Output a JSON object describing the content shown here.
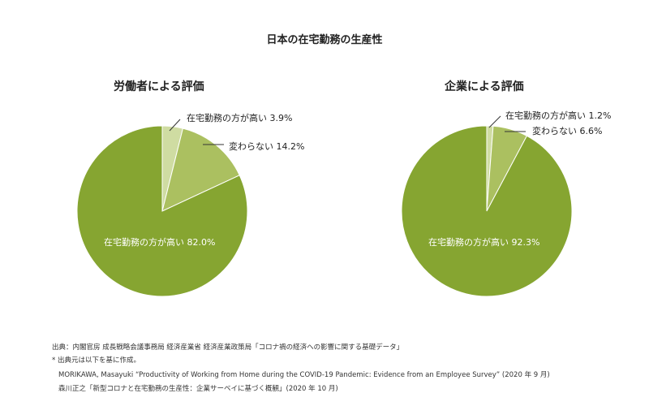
{
  "title": "日本の在宅勤務の生産性",
  "colors": {
    "high_home": "#cfdca2",
    "same": "#abc060",
    "high_office": "#86a531"
  },
  "chart_data": [
    {
      "type": "pie",
      "title": "労働者による評価",
      "slices": [
        {
          "label": "在宅勤務の方が高い",
          "value": 3.9,
          "text": "在宅勤務の方が高い 3.9%"
        },
        {
          "label": "変わらない",
          "value": 14.2,
          "text": "変わらない 14.2%"
        },
        {
          "label": "在宅勤務の方が高い",
          "value": 82.0,
          "text": "在宅勤務の方が高い 82.0%"
        }
      ]
    },
    {
      "type": "pie",
      "title": "企業による評価",
      "slices": [
        {
          "label": "在宅勤務の方が高い",
          "value": 1.2,
          "text": "在宅勤務の方が高い 1.2%"
        },
        {
          "label": "変わらない",
          "value": 6.6,
          "text": "変わらない 6.6%"
        },
        {
          "label": "在宅勤務の方が高い",
          "value": 92.3,
          "text": "在宅勤務の方が高い 92.3%"
        }
      ]
    }
  ],
  "notes": [
    "出典：内閣官房 成長戦略会議事務局 経済産業省 経済産業政策局「コロナ禍の経済への影響に関する基礎データ」",
    "* 出典元は以下を基に作成。",
    "MORIKAWA, Masayuki “Productivity of Working from Home during the COVID-19 Pandemic: Evidence from an Employee Survey” (2020 年 9 月)",
    "森川正之「新型コロナと在宅勤務の生産性：企業サーベイに基づく概観」(2020 年 10 月)"
  ]
}
